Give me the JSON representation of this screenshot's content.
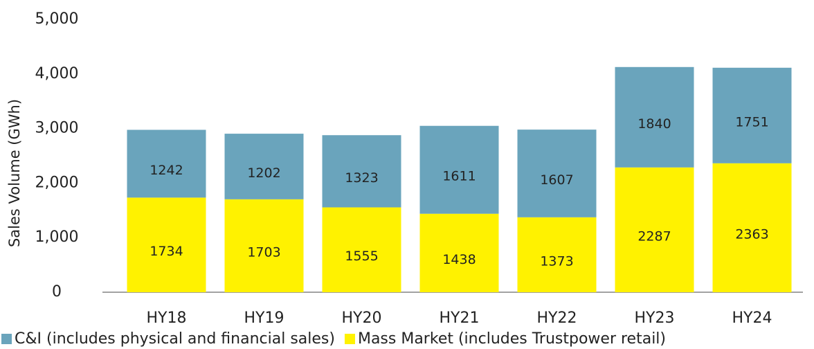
{
  "chart_data": {
    "type": "stacked_bar",
    "y_label": "Sales Volume (GWh)",
    "categories": [
      "HY18",
      "HY19",
      "HY20",
      "HY21",
      "HY22",
      "HY23",
      "HY24"
    ],
    "series": [
      {
        "name": "C&I (includes physical and financial sales)",
        "color": "#6aa4bc",
        "values": [
          1242,
          1202,
          1323,
          1611,
          1607,
          1840,
          1751
        ]
      },
      {
        "name": "Mass Market (includes Trustpower retail)",
        "color": "#fff200",
        "values": [
          1734,
          1703,
          1555,
          1438,
          1373,
          2287,
          2363
        ]
      }
    ],
    "ylim": [
      0,
      5000
    ],
    "yticks": [
      0,
      {
        "value": 1000,
        "label": "1,000"
      },
      {
        "value": 2000,
        "label": "2,000"
      },
      {
        "value": 3000,
        "label": "3,000"
      },
      {
        "value": 4000,
        "label": "4,000"
      },
      {
        "value": 5000,
        "label": "5,000"
      }
    ],
    "grid": false,
    "legend": "bottom"
  }
}
